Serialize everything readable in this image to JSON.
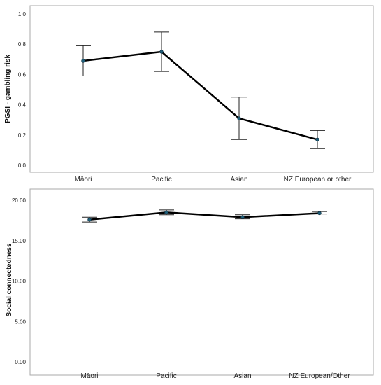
{
  "chart_data": [
    {
      "type": "line",
      "title": "",
      "xlabel": "",
      "ylabel": "PGSI - gambling risk",
      "categories": [
        "Māori",
        "Pacific",
        "Asian",
        "NZ European or other"
      ],
      "ylim": [
        0.0,
        1.0
      ],
      "yticks": [
        "0.0",
        "0.2",
        "0.4",
        "0.6",
        "0.8",
        "1.0"
      ],
      "series": [
        {
          "values": [
            0.69,
            0.75,
            0.31,
            0.17
          ],
          "error_low": [
            0.59,
            0.62,
            0.17,
            0.11
          ],
          "error_high": [
            0.79,
            0.88,
            0.45,
            0.23
          ]
        }
      ],
      "grid": false,
      "legend": "none"
    },
    {
      "type": "line",
      "title": "",
      "xlabel": "",
      "ylabel": "Social connectedness",
      "categories": [
        "Māori",
        "Pacific",
        "Asian",
        "NZ European/Other"
      ],
      "ylim": [
        0.0,
        20.0
      ],
      "yticks": [
        "0.00",
        "5.00",
        "10.00",
        "15.00",
        "20.00"
      ],
      "series": [
        {
          "values": [
            17.6,
            18.5,
            17.9,
            18.4
          ],
          "error_low": [
            17.3,
            18.2,
            17.7,
            18.3
          ],
          "error_high": [
            17.9,
            18.8,
            18.2,
            18.6
          ]
        }
      ],
      "grid": false,
      "legend": "none"
    }
  ]
}
